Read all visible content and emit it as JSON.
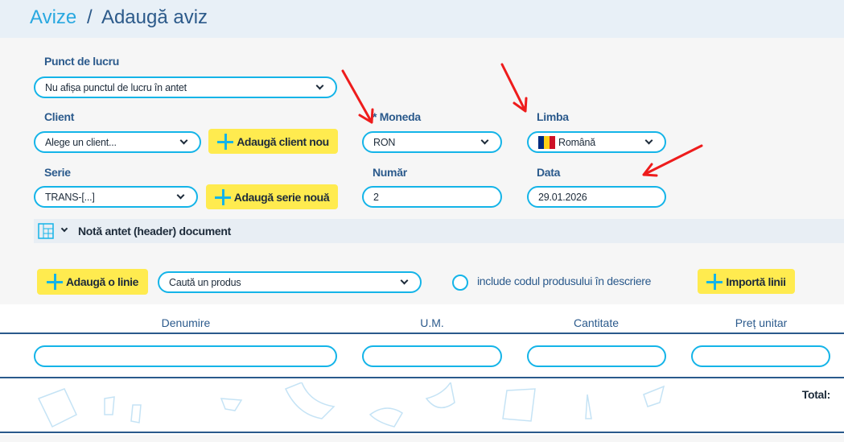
{
  "breadcrumb": {
    "root": "Avize",
    "separator": "/",
    "current": "Adaugă aviz"
  },
  "form": {
    "punct_de_lucru": {
      "label": "Punct de lucru",
      "value": "Nu afișa punctul de lucru în antet"
    },
    "client": {
      "label": "Client",
      "value": "Alege un client...",
      "add_button": "Adaugă client nou"
    },
    "moneda": {
      "label": "* Moneda",
      "value": "RON"
    },
    "limba": {
      "label": "Limba",
      "value": "Română",
      "flag": "romania-flag"
    },
    "serie": {
      "label": "Serie",
      "value": "TRANS-[...]",
      "add_button": "Adaugă serie nouă"
    },
    "numar": {
      "label": "Număr",
      "value": "2"
    },
    "data": {
      "label": "Data",
      "value": "29.01.2026"
    }
  },
  "note_header": {
    "label": "Notă antet (header) document"
  },
  "lines_toolbar": {
    "add_line": "Adaugă o linie",
    "product_search_placeholder": "Caută un produs",
    "include_code_label": "include codul produsului în descriere",
    "include_code_checked": false,
    "import_lines": "Importă linii"
  },
  "table": {
    "columns": [
      "Denumire",
      "U.M.",
      "Cantitate",
      "Preț unitar"
    ],
    "total_label": "Total:"
  },
  "colors": {
    "accent": "#14b4e8",
    "button": "#ffeb4f",
    "label": "#2b5a8c",
    "annotation_arrows": "#ee1c1c"
  }
}
